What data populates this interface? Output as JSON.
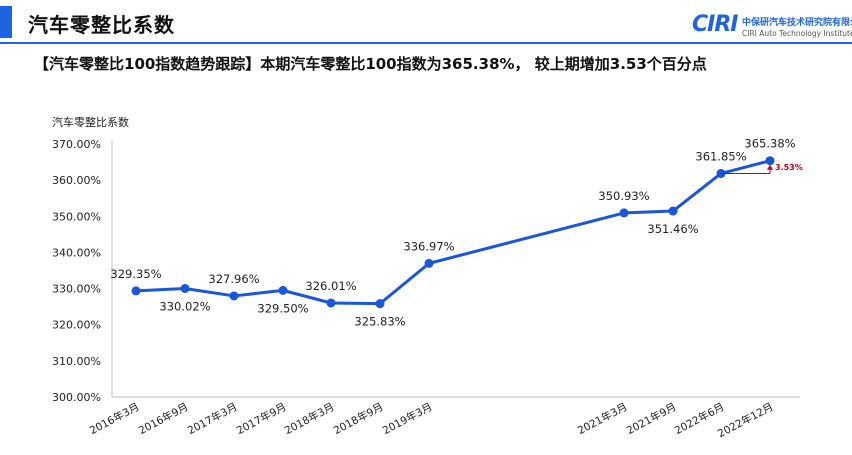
{
  "header": {
    "title": "汽车零整比系数",
    "logo_mark": "CIRI",
    "logo_cn": "中保研汽车技术研究院有限公司",
    "logo_en": "CIRI Auto Technology Institute",
    "accent_color": "#1e63e0"
  },
  "subtitle": "【汽车零整比100指数趋势跟踪】本期汽车零整比100指数为365.38%， 较上期增加3.53个百分点",
  "chart_data": {
    "type": "line",
    "ylabel": "汽车零整比系数",
    "ylim": [
      300,
      370
    ],
    "y_ticks": [
      "300.00%",
      "310.00%",
      "320.00%",
      "330.00%",
      "340.00%",
      "350.00%",
      "360.00%",
      "370.00%"
    ],
    "categories": [
      "2016年3月",
      "2016年9月",
      "2017年3月",
      "2017年9月",
      "2018年3月",
      "2018年9月",
      "2019年3月",
      "2021年3月",
      "2021年9月",
      "2022年6月",
      "2022年12月"
    ],
    "values": [
      329.35,
      330.02,
      327.96,
      329.5,
      326.01,
      325.83,
      336.97,
      350.93,
      351.46,
      361.85,
      365.38
    ],
    "data_labels": [
      "329.35%",
      "330.02%",
      "327.96%",
      "329.50%",
      "326.01%",
      "325.83%",
      "336.97%",
      "350.93%",
      "351.46%",
      "361.85%",
      "365.38%"
    ],
    "change_annotation": "3.53%",
    "line_color": "#1a56db",
    "annotation_color": "#c0001a",
    "grid": false
  }
}
